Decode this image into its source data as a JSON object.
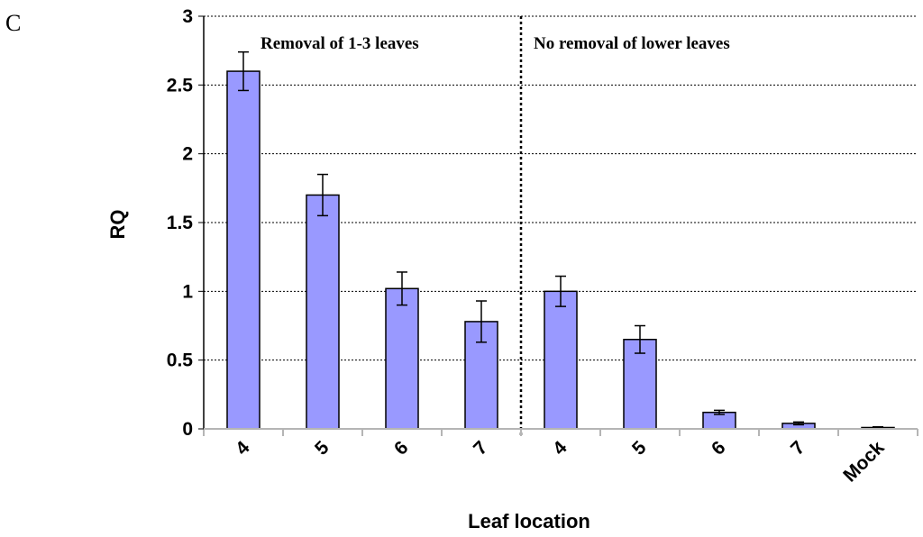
{
  "panel_label": "C",
  "chart_data": {
    "type": "bar",
    "categories": [
      "4",
      "5",
      "6",
      "7",
      "4",
      "5",
      "6",
      "7",
      "Mock"
    ],
    "values": [
      2.6,
      1.7,
      1.02,
      0.78,
      1.0,
      0.65,
      0.12,
      0.04,
      0.01
    ],
    "errors": [
      0.14,
      0.15,
      0.12,
      0.15,
      0.11,
      0.1,
      0.015,
      0.01,
      0.005
    ],
    "xlabel": "Leaf location",
    "ylabel": "RQ",
    "ylim": [
      0,
      3
    ],
    "yticks": [
      0,
      0.5,
      1,
      1.5,
      2,
      2.5,
      3
    ],
    "ytick_labels": [
      "0",
      "0.5",
      "1",
      "1.5",
      "2",
      "2.5",
      "3"
    ],
    "grid": true,
    "bar_color": "#9999ff",
    "annotations": [
      "Removal of 1-3 leaves",
      "No removal of  lower leaves"
    ],
    "group_divider_after_category_index": 3
  }
}
